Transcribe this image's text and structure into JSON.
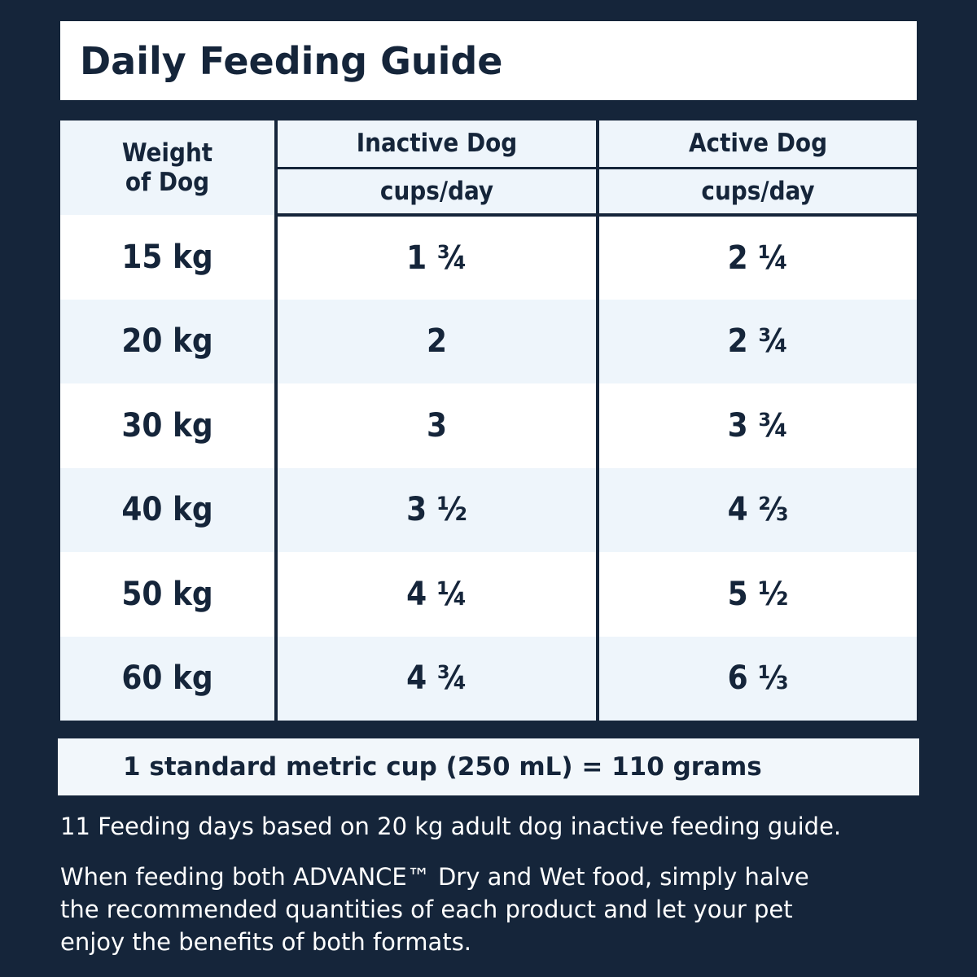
{
  "title": "Daily Feeding Guide",
  "table": {
    "weight_header_line1": "Weight",
    "weight_header_line2": "of Dog",
    "inactive_header": "Inactive Dog",
    "inactive_unit": "cups/day",
    "active_header": "Active Dog",
    "active_unit": "cups/day",
    "rows": [
      {
        "weight": "15 kg",
        "inactive": "1 ¾",
        "active": "2 ¼"
      },
      {
        "weight": "20 kg",
        "inactive": "2",
        "active": "2 ¾"
      },
      {
        "weight": "30 kg",
        "inactive": "3",
        "active": "3 ¾"
      },
      {
        "weight": "40 kg",
        "inactive": "3 ½",
        "active": "4 ⅔"
      },
      {
        "weight": "50 kg",
        "inactive": "4 ¼",
        "active": "5 ½"
      },
      {
        "weight": "60 kg",
        "inactive": "4 ¾",
        "active": "6 ⅓"
      }
    ]
  },
  "cup_note": "1 standard metric cup (250 mL) = 110 grams",
  "note1": "11 Feeding days based on 20 kg adult dog inactive feeding guide.",
  "note2_line1": "When feeding both ADVANCE™ Dry and Wet food, simply halve",
  "note2_line2": "the recommended quantities of each product and let your pet",
  "note2_line3": "enjoy the benefits of both formats.",
  "colors": {
    "background": "#15253a",
    "tint": "#eef5fb",
    "white": "#ffffff"
  }
}
